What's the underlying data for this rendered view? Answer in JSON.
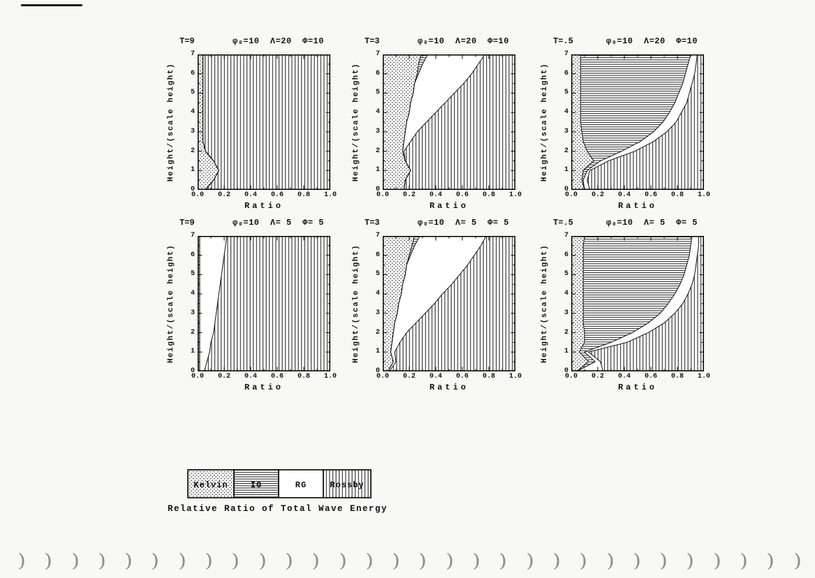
{
  "page": {
    "caption": "Relative Ratio of Total Wave Energy",
    "background": "#f8f8f5",
    "ink": "#111111",
    "binder_hole_count": 30
  },
  "legend": {
    "position": "bottom-left",
    "items": [
      {
        "label": "Kelvin",
        "pattern": "dots"
      },
      {
        "label": "IG",
        "pattern": "hlines"
      },
      {
        "label": "RG",
        "pattern": "none"
      },
      {
        "label": "Rossby",
        "pattern": "vlines"
      }
    ]
  },
  "chart_data": [
    {
      "type": "area",
      "title_t": "T=9",
      "title_params": "φ₀=10  Λ=20  Φ=10",
      "xlabel": "Ratio",
      "ylabel": "Height/(scale height)",
      "xlim": [
        0,
        1
      ],
      "ylim": [
        0,
        7
      ],
      "grid": false,
      "xticks": [
        "0.0",
        "0.2",
        "0.4",
        "0.6",
        "0.8",
        "1.0"
      ],
      "yticks": [
        "0",
        "1",
        "2",
        "3",
        "4",
        "5",
        "6",
        "7"
      ],
      "heights": [
        0,
        0.5,
        1,
        1.5,
        2,
        2.5,
        3,
        3.5,
        4,
        4.5,
        5,
        5.5,
        6,
        6.5,
        7
      ],
      "regions": {
        "order": [
          "Kelvin",
          "IG",
          "RG",
          "Rossby"
        ],
        "kelvin_right": [
          0.06,
          0.12,
          0.16,
          0.12,
          0.06,
          0.04,
          0.04,
          0.04,
          0.04,
          0.04,
          0.04,
          0.04,
          0.04,
          0.04,
          0.04
        ],
        "ig_right": [
          0.06,
          0.12,
          0.16,
          0.12,
          0.06,
          0.04,
          0.04,
          0.04,
          0.04,
          0.04,
          0.04,
          0.04,
          0.04,
          0.04,
          0.04
        ],
        "rg_right": [
          0.06,
          0.12,
          0.16,
          0.12,
          0.06,
          0.04,
          0.04,
          0.04,
          0.04,
          0.04,
          0.04,
          0.04,
          0.04,
          0.04,
          0.04
        ],
        "rossby_right": 1.0
      }
    },
    {
      "type": "area",
      "title_t": "T=3",
      "title_params": "φ₀=10  Λ=20  Φ=10",
      "xlabel": "Ratio",
      "ylabel": "Height/(scale height)",
      "xlim": [
        0,
        1
      ],
      "ylim": [
        0,
        7
      ],
      "grid": false,
      "xticks": [
        "0.0",
        "0.2",
        "0.4",
        "0.6",
        "0.8",
        "1.0"
      ],
      "yticks": [
        "0",
        "1",
        "2",
        "3",
        "4",
        "5",
        "6",
        "7"
      ],
      "heights": [
        0,
        0.5,
        1,
        1.5,
        2,
        2.5,
        3,
        3.5,
        4,
        4.5,
        5,
        5.5,
        6,
        6.5,
        7
      ],
      "regions": {
        "order": [
          "Kelvin",
          "IG",
          "RG",
          "Rossby"
        ],
        "kelvin_right": [
          0.16,
          0.17,
          0.21,
          0.17,
          0.15,
          0.16,
          0.17,
          0.18,
          0.2,
          0.21,
          0.23,
          0.24,
          0.26,
          0.27,
          0.29
        ],
        "ig_right": [
          0.16,
          0.17,
          0.21,
          0.17,
          0.15,
          0.16,
          0.17,
          0.18,
          0.2,
          0.21,
          0.23,
          0.24,
          0.27,
          0.3,
          0.34
        ],
        "rg_right": [
          0.16,
          0.17,
          0.21,
          0.17,
          0.16,
          0.21,
          0.26,
          0.33,
          0.4,
          0.47,
          0.54,
          0.61,
          0.67,
          0.72,
          0.77
        ],
        "rossby_right": 1.0
      }
    },
    {
      "type": "area",
      "title_t": "T=.5",
      "title_params": "φ₀=10  Λ=20  Φ=10",
      "xlabel": "Ratio",
      "ylabel": "Height/(scale height)",
      "xlim": [
        0,
        1
      ],
      "ylim": [
        0,
        7
      ],
      "grid": false,
      "xticks": [
        "0.0",
        "0.2",
        "0.4",
        "0.6",
        "0.8",
        "1.0"
      ],
      "yticks": [
        "0",
        "1",
        "2",
        "3",
        "4",
        "5",
        "6",
        "7"
      ],
      "heights": [
        0,
        0.5,
        1,
        1.5,
        2,
        2.5,
        3,
        3.5,
        4,
        4.5,
        5,
        5.5,
        6,
        6.5,
        7
      ],
      "regions": {
        "order": [
          "Kelvin",
          "IG",
          "RG",
          "Rossby"
        ],
        "kelvin_right": [
          0.1,
          0.08,
          0.09,
          0.17,
          0.12,
          0.09,
          0.08,
          0.07,
          0.07,
          0.07,
          0.07,
          0.07,
          0.07,
          0.07,
          0.07
        ],
        "ig_right": [
          0.1,
          0.09,
          0.12,
          0.22,
          0.38,
          0.52,
          0.62,
          0.69,
          0.74,
          0.78,
          0.81,
          0.84,
          0.86,
          0.88,
          0.9
        ],
        "rg_right": [
          0.14,
          0.12,
          0.14,
          0.28,
          0.48,
          0.62,
          0.72,
          0.79,
          0.83,
          0.87,
          0.89,
          0.91,
          0.93,
          0.94,
          0.95
        ],
        "rossby_right": 1.0
      }
    },
    {
      "type": "area",
      "title_t": "T=9",
      "title_params": "φ₀=10  Λ= 5  Φ= 5",
      "xlabel": "Ratio",
      "ylabel": "Height/(scale height)",
      "xlim": [
        0,
        1
      ],
      "ylim": [
        0,
        7
      ],
      "grid": false,
      "xticks": [
        "0.0",
        "0.2",
        "0.4",
        "0.6",
        "0.8",
        "1.0"
      ],
      "yticks": [
        "0",
        "1",
        "2",
        "3",
        "4",
        "5",
        "6",
        "7"
      ],
      "heights": [
        0,
        0.5,
        1,
        1.5,
        2,
        2.5,
        3,
        3.5,
        4,
        4.5,
        5,
        5.5,
        6,
        6.5,
        7
      ],
      "regions": {
        "order": [
          "Kelvin",
          "IG",
          "RG",
          "Rossby"
        ],
        "kelvin_right": [
          0.015,
          0.015,
          0.015,
          0.015,
          0.015,
          0.015,
          0.015,
          0.015,
          0.015,
          0.015,
          0.015,
          0.015,
          0.015,
          0.015,
          0.015
        ],
        "ig_right": [
          0.015,
          0.015,
          0.015,
          0.015,
          0.015,
          0.015,
          0.015,
          0.015,
          0.015,
          0.015,
          0.015,
          0.015,
          0.015,
          0.015,
          0.015
        ],
        "rg_right": [
          0.05,
          0.07,
          0.09,
          0.1,
          0.12,
          0.13,
          0.14,
          0.15,
          0.16,
          0.17,
          0.18,
          0.19,
          0.2,
          0.21,
          0.22
        ],
        "rossby_right": 1.0
      }
    },
    {
      "type": "area",
      "title_t": "T=3",
      "title_params": "φ₀=10  Λ= 5  Φ= 5",
      "xlabel": "Ratio",
      "ylabel": "Height/(scale height)",
      "xlim": [
        0,
        1
      ],
      "ylim": [
        0,
        7
      ],
      "grid": false,
      "xticks": [
        "0.0",
        "0.2",
        "0.4",
        "0.6",
        "0.8",
        "1.0"
      ],
      "yticks": [
        "0",
        "1",
        "2",
        "3",
        "4",
        "5",
        "6",
        "7"
      ],
      "heights": [
        0,
        0.5,
        1,
        1.5,
        2,
        2.5,
        3,
        3.5,
        4,
        4.5,
        5,
        5.5,
        6,
        6.5,
        7
      ],
      "regions": {
        "order": [
          "Kelvin",
          "IG",
          "RG",
          "Rossby"
        ],
        "kelvin_right": [
          0.04,
          0.08,
          0.06,
          0.07,
          0.08,
          0.09,
          0.11,
          0.12,
          0.14,
          0.15,
          0.17,
          0.18,
          0.2,
          0.22,
          0.24
        ],
        "ig_right": [
          0.04,
          0.08,
          0.06,
          0.07,
          0.08,
          0.09,
          0.11,
          0.12,
          0.14,
          0.15,
          0.17,
          0.18,
          0.21,
          0.24,
          0.28
        ],
        "rg_right": [
          0.05,
          0.1,
          0.09,
          0.13,
          0.18,
          0.25,
          0.32,
          0.39,
          0.45,
          0.52,
          0.58,
          0.64,
          0.69,
          0.74,
          0.78
        ],
        "rossby_right": 1.0
      }
    },
    {
      "type": "area",
      "title_t": "T=.5",
      "title_params": "φ₀=10  Λ= 5  Φ= 5",
      "xlabel": "Ratio",
      "ylabel": "Height/(scale height)",
      "xlim": [
        0,
        1
      ],
      "ylim": [
        0,
        7
      ],
      "grid": false,
      "xticks": [
        "0.0",
        "0.2",
        "0.4",
        "0.6",
        "0.8",
        "1.0"
      ],
      "yticks": [
        "0",
        "1",
        "2",
        "3",
        "4",
        "5",
        "6",
        "7"
      ],
      "heights": [
        0,
        0.5,
        1,
        1.5,
        2,
        2.5,
        3,
        3.5,
        4,
        4.5,
        5,
        5.5,
        6,
        6.5,
        7
      ],
      "regions": {
        "order": [
          "Kelvin",
          "IG",
          "RG",
          "Rossby"
        ],
        "kelvin_right": [
          0.04,
          0.13,
          0.06,
          0.1,
          0.1,
          0.09,
          0.09,
          0.09,
          0.09,
          0.09,
          0.09,
          0.09,
          0.09,
          0.09,
          0.1
        ],
        "ig_right": [
          0.04,
          0.18,
          0.1,
          0.3,
          0.46,
          0.58,
          0.67,
          0.73,
          0.78,
          0.82,
          0.85,
          0.87,
          0.89,
          0.9,
          0.91
        ],
        "rg_right": [
          0.24,
          0.22,
          0.13,
          0.42,
          0.58,
          0.7,
          0.78,
          0.84,
          0.88,
          0.91,
          0.93,
          0.94,
          0.95,
          0.96,
          0.96
        ],
        "rossby_right": 1.0
      }
    }
  ]
}
